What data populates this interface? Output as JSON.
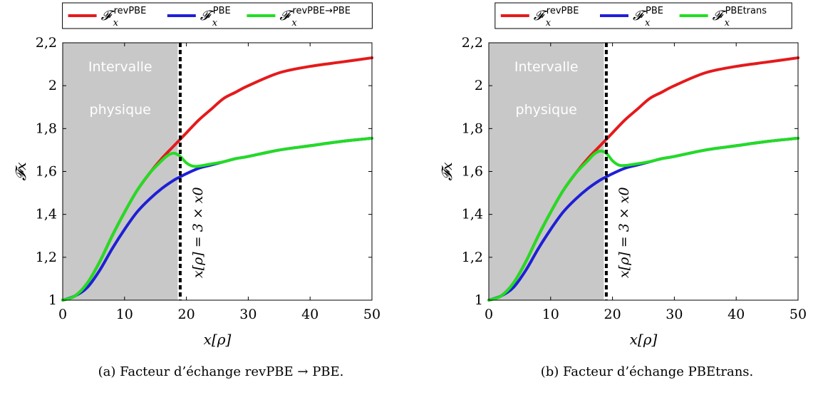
{
  "chart_data": [
    {
      "type": "line",
      "caption": "(a) Facteur d’échange revPBE → PBE.",
      "ylabel": "𝓕x",
      "xlabel": "x[ρ]",
      "xlim": [
        0,
        50
      ],
      "ylim": [
        1,
        2.2
      ],
      "xticks": [
        0,
        10,
        20,
        30,
        40,
        50
      ],
      "xtick_labels": [
        "0",
        "10",
        "20",
        "30",
        "40",
        "50"
      ],
      "yticks": [
        1,
        1.2,
        1.4,
        1.6,
        1.8,
        2,
        2.2
      ],
      "ytick_labels": [
        "1",
        "1,2",
        "1,4",
        "1,6",
        "1,8",
        "2",
        "2,2"
      ],
      "shaded_region": {
        "x": [
          0,
          18.6
        ],
        "label_line1": "Intervalle",
        "label_line2": "physique"
      },
      "vline": {
        "x": 19,
        "label": "x[ρ] = 3 × x0"
      },
      "legend": {
        "position": "top-center"
      },
      "series": [
        {
          "name": "𝓕xrevPBE",
          "base": "𝓕",
          "sub": "x",
          "sup": "revPBE",
          "color": "#e41a1c",
          "x": [
            0,
            2,
            4,
            6,
            8,
            10,
            12,
            14,
            16,
            18,
            19,
            20,
            22,
            24,
            26,
            28,
            30,
            35,
            40,
            45,
            50
          ],
          "y": [
            1,
            1.02,
            1.08,
            1.18,
            1.3,
            1.41,
            1.51,
            1.59,
            1.66,
            1.72,
            1.75,
            1.78,
            1.84,
            1.89,
            1.94,
            1.97,
            2.0,
            2.06,
            2.09,
            2.11,
            2.13
          ]
        },
        {
          "name": "𝓕xPBE",
          "base": "𝓕",
          "sub": "x",
          "sup": "PBE",
          "color": "#1f1fd6",
          "x": [
            0,
            2,
            4,
            6,
            8,
            10,
            12,
            14,
            16,
            18,
            19,
            20,
            22,
            24,
            26,
            28,
            30,
            35,
            40,
            45,
            50
          ],
          "y": [
            1,
            1.02,
            1.06,
            1.14,
            1.24,
            1.33,
            1.41,
            1.47,
            1.52,
            1.56,
            1.575,
            1.59,
            1.615,
            1.63,
            1.645,
            1.66,
            1.67,
            1.7,
            1.72,
            1.74,
            1.755
          ]
        },
        {
          "name": "𝓕xrevPBE→PBE",
          "base": "𝓕",
          "sub": "x",
          "sup": "revPBE→PBE",
          "color": "#22dd22",
          "x": [
            0,
            2,
            4,
            6,
            8,
            10,
            12,
            14,
            16,
            17,
            18,
            19,
            20,
            21,
            22,
            24,
            26,
            28,
            30,
            35,
            40,
            45,
            50
          ],
          "y": [
            1,
            1.02,
            1.08,
            1.18,
            1.3,
            1.41,
            1.51,
            1.59,
            1.65,
            1.675,
            1.685,
            1.67,
            1.64,
            1.625,
            1.625,
            1.635,
            1.645,
            1.66,
            1.67,
            1.7,
            1.72,
            1.74,
            1.755
          ]
        }
      ]
    },
    {
      "type": "line",
      "caption": "(b) Facteur d’échange PBEtrans.",
      "ylabel": "𝓕x",
      "xlabel": "x[ρ]",
      "xlim": [
        0,
        50
      ],
      "ylim": [
        1,
        2.2
      ],
      "xticks": [
        0,
        10,
        20,
        30,
        40,
        50
      ],
      "xtick_labels": [
        "0",
        "10",
        "20",
        "30",
        "40",
        "50"
      ],
      "yticks": [
        1,
        1.2,
        1.4,
        1.6,
        1.8,
        2,
        2.2
      ],
      "ytick_labels": [
        "1",
        "1,2",
        "1,4",
        "1,6",
        "1,8",
        "2",
        "2,2"
      ],
      "shaded_region": {
        "x": [
          0,
          18.6
        ],
        "label_line1": "Intervalle",
        "label_line2": "physique"
      },
      "vline": {
        "x": 19,
        "label": "x[ρ] = 3 × x0"
      },
      "legend": {
        "position": "top-center"
      },
      "series": [
        {
          "name": "𝓕xrevPBE",
          "base": "𝓕",
          "sub": "x",
          "sup": "revPBE",
          "color": "#e41a1c",
          "x": [
            0,
            2,
            4,
            6,
            8,
            10,
            12,
            14,
            16,
            18,
            19,
            20,
            22,
            24,
            26,
            28,
            30,
            35,
            40,
            45,
            50
          ],
          "y": [
            1,
            1.02,
            1.08,
            1.18,
            1.3,
            1.41,
            1.51,
            1.59,
            1.66,
            1.72,
            1.75,
            1.78,
            1.84,
            1.89,
            1.94,
            1.97,
            2.0,
            2.06,
            2.09,
            2.11,
            2.13
          ]
        },
        {
          "name": "𝓕xPBE",
          "base": "𝓕",
          "sub": "x",
          "sup": "PBE",
          "color": "#1f1fd6",
          "x": [
            0,
            2,
            4,
            6,
            8,
            10,
            12,
            14,
            16,
            18,
            19,
            20,
            22,
            24,
            26,
            28,
            30,
            35,
            40,
            45,
            50
          ],
          "y": [
            1,
            1.02,
            1.06,
            1.14,
            1.24,
            1.33,
            1.41,
            1.47,
            1.52,
            1.56,
            1.575,
            1.59,
            1.615,
            1.63,
            1.645,
            1.66,
            1.67,
            1.7,
            1.72,
            1.74,
            1.755
          ]
        },
        {
          "name": "𝓕xPBEtrans",
          "base": "𝓕",
          "sub": "x",
          "sup": "PBEtrans",
          "color": "#22dd22",
          "x": [
            0,
            2,
            4,
            6,
            8,
            10,
            12,
            14,
            16,
            17,
            18,
            19,
            20,
            21,
            22,
            24,
            26,
            28,
            30,
            35,
            40,
            45,
            50
          ],
          "y": [
            1,
            1.02,
            1.08,
            1.18,
            1.3,
            1.41,
            1.51,
            1.59,
            1.65,
            1.68,
            1.695,
            1.685,
            1.65,
            1.63,
            1.628,
            1.636,
            1.646,
            1.66,
            1.67,
            1.7,
            1.72,
            1.74,
            1.755
          ]
        }
      ]
    }
  ]
}
